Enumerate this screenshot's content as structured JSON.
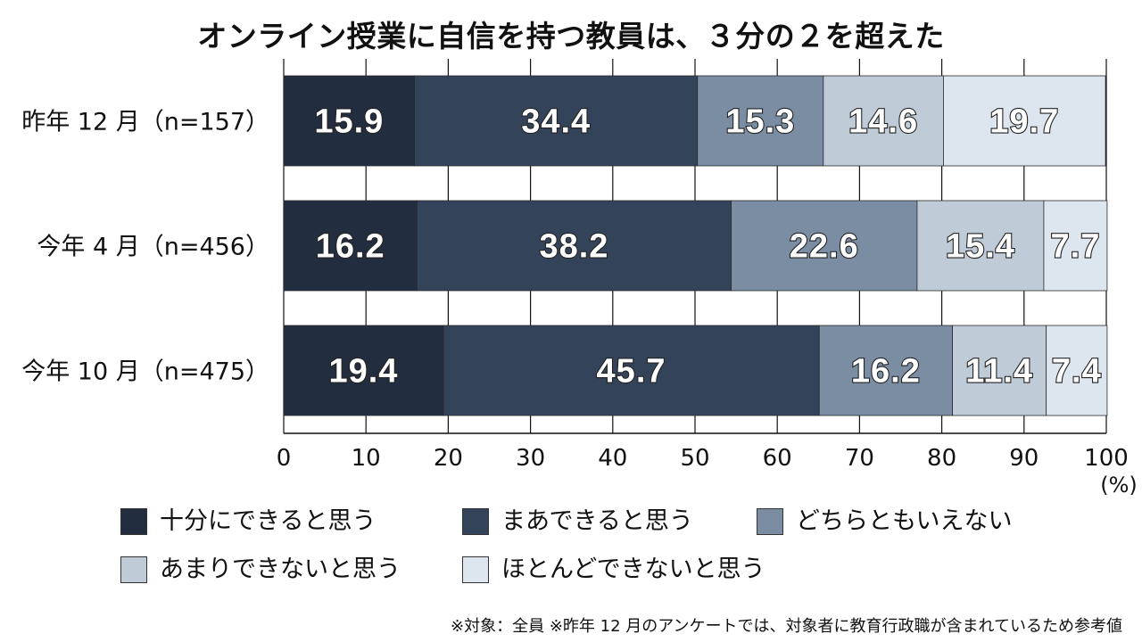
{
  "chart_data": {
    "type": "bar",
    "orientation": "horizontal",
    "stacked": true,
    "title": "オンライン授業に自信を持つ教員は、３分の２を超えた",
    "categories": [
      "昨年 12 月（n=157）",
      "今年 4 月（n=456）",
      "今年 10 月（n=475）"
    ],
    "series": [
      {
        "name": "十分にできると思う",
        "color": "#222d40",
        "values": [
          15.9,
          16.2,
          19.4
        ]
      },
      {
        "name": "まあできると思う",
        "color": "#33435a",
        "values": [
          34.4,
          38.2,
          45.7
        ]
      },
      {
        "name": "どちらともいえない",
        "color": "#7b8da3",
        "values": [
          15.3,
          22.6,
          16.2
        ]
      },
      {
        "name": "あまりできないと思う",
        "color": "#bfccd8",
        "values": [
          14.6,
          15.4,
          11.4
        ]
      },
      {
        "name": "ほとんどできないと思う",
        "color": "#dde6ee",
        "values": [
          19.7,
          7.7,
          7.4
        ]
      }
    ],
    "xlim": [
      0,
      100
    ],
    "xticks": [
      "0",
      "10",
      "20",
      "30",
      "40",
      "50",
      "60",
      "70",
      "80",
      "90",
      "100"
    ],
    "xunit": "(%)",
    "grid": true,
    "legend_position": "bottom",
    "footnote": "※対象：全員 ※昨年 12 月のアンケートでは、対象者に教育行政職が含まれているため参考値"
  }
}
